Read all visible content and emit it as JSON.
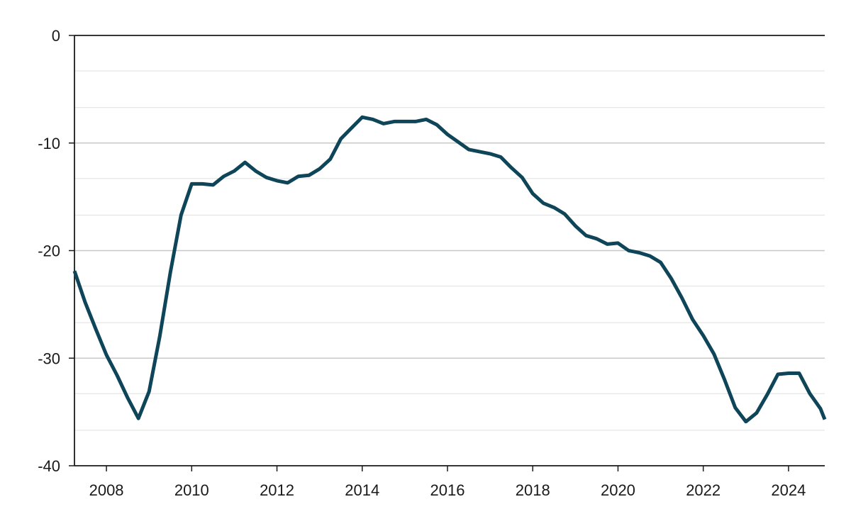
{
  "chart_data": {
    "type": "line",
    "title": "",
    "xlabel": "",
    "ylabel": "",
    "xlim": [
      2007.25,
      2024.85
    ],
    "ylim": [
      -40,
      0
    ],
    "grid": true,
    "legend": "none",
    "x_ticks": [
      2008,
      2010,
      2012,
      2014,
      2016,
      2018,
      2020,
      2022,
      2024
    ],
    "x_tick_labels": [
      "2008",
      "2010",
      "2012",
      "2014",
      "2016",
      "2018",
      "2020",
      "2022",
      "2024"
    ],
    "y_ticks": [
      0,
      -10,
      -20,
      -30,
      -40
    ],
    "y_tick_labels": [
      "0",
      "-10",
      "-20",
      "-30",
      "-40"
    ],
    "y_minor_gridlines": [
      -3.3,
      -6.7,
      -13.3,
      -16.7,
      -23.3,
      -26.7,
      -33.3,
      -36.7
    ],
    "series": [
      {
        "color": "#0e4558",
        "x": [
          2007.25,
          2007.5,
          2007.75,
          2008.0,
          2008.25,
          2008.5,
          2008.75,
          2009.0,
          2009.25,
          2009.5,
          2009.75,
          2010.0,
          2010.25,
          2010.5,
          2010.75,
          2011.0,
          2011.25,
          2011.5,
          2011.75,
          2012.0,
          2012.25,
          2012.5,
          2012.75,
          2013.0,
          2013.25,
          2013.5,
          2013.75,
          2014.0,
          2014.25,
          2014.5,
          2014.75,
          2015.0,
          2015.25,
          2015.5,
          2015.75,
          2016.0,
          2016.25,
          2016.5,
          2016.75,
          2017.0,
          2017.25,
          2017.5,
          2017.75,
          2018.0,
          2018.25,
          2018.5,
          2018.75,
          2019.0,
          2019.25,
          2019.5,
          2019.75,
          2020.0,
          2020.25,
          2020.5,
          2020.75,
          2021.0,
          2021.25,
          2021.5,
          2021.75,
          2022.0,
          2022.25,
          2022.5,
          2022.75,
          2023.0,
          2023.25,
          2023.5,
          2023.75,
          2024.0,
          2024.25,
          2024.5,
          2024.75,
          2024.85
        ],
        "y": [
          -21.9,
          -24.8,
          -27.3,
          -29.7,
          -31.6,
          -33.7,
          -35.6,
          -33.1,
          -28.0,
          -22.0,
          -16.7,
          -13.8,
          -13.8,
          -13.9,
          -13.1,
          -12.6,
          -11.8,
          -12.6,
          -13.2,
          -13.5,
          -13.7,
          -13.1,
          -13.0,
          -12.4,
          -11.5,
          -9.6,
          -8.6,
          -7.6,
          -7.8,
          -8.2,
          -8.0,
          -8.0,
          -8.0,
          -7.8,
          -8.3,
          -9.2,
          -9.9,
          -10.6,
          -10.8,
          -11.0,
          -11.3,
          -12.3,
          -13.2,
          -14.7,
          -15.6,
          -16.0,
          -16.6,
          -17.7,
          -18.6,
          -18.9,
          -19.4,
          -19.3,
          -20.0,
          -20.2,
          -20.5,
          -21.1,
          -22.6,
          -24.4,
          -26.4,
          -27.9,
          -29.6,
          -32.0,
          -34.6,
          -35.9,
          -35.1,
          -33.4,
          -31.5,
          -31.4,
          -31.4,
          -33.3,
          -34.7,
          -35.7
        ]
      }
    ]
  }
}
